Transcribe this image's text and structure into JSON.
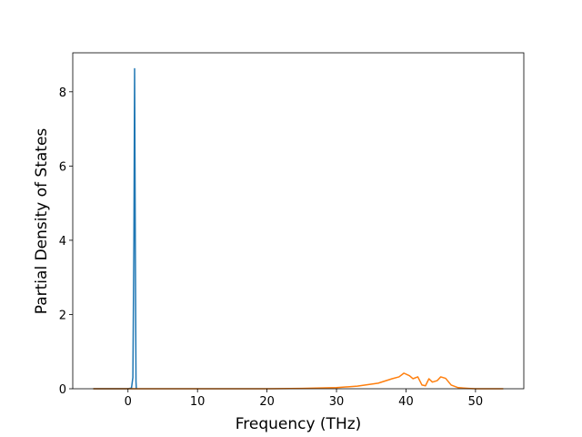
{
  "chart_data": {
    "type": "line",
    "xlabel": "Frequency (THz)",
    "ylabel": "Partial Density of States",
    "xlim": [
      -7.95,
      56.95
    ],
    "ylim": [
      0,
      9.05
    ],
    "xticks": [
      0,
      10,
      20,
      30,
      40,
      50
    ],
    "yticks": [
      0,
      2,
      4,
      6,
      8
    ],
    "series": [
      {
        "color": "#1f77b4",
        "x": [
          -5,
          0,
          0.5,
          0.7,
          0.85,
          0.95,
          1.05,
          1.15,
          1.2
        ],
        "values": [
          0,
          0,
          0.02,
          0.3,
          4.0,
          8.62,
          4.0,
          0.2,
          0
        ]
      },
      {
        "color": "#ff7f0e",
        "x": [
          -5,
          20,
          25,
          30,
          33,
          36,
          38,
          39,
          39.7,
          40.5,
          41,
          41.7,
          42.3,
          42.8,
          43.3,
          43.8,
          44.5,
          45,
          45.7,
          46.5,
          47.5,
          49,
          50,
          54
        ],
        "values": [
          0,
          0,
          0.01,
          0.03,
          0.07,
          0.15,
          0.27,
          0.32,
          0.42,
          0.35,
          0.27,
          0.32,
          0.1,
          0.08,
          0.27,
          0.18,
          0.22,
          0.32,
          0.28,
          0.1,
          0.03,
          0.01,
          0,
          0
        ]
      }
    ]
  }
}
